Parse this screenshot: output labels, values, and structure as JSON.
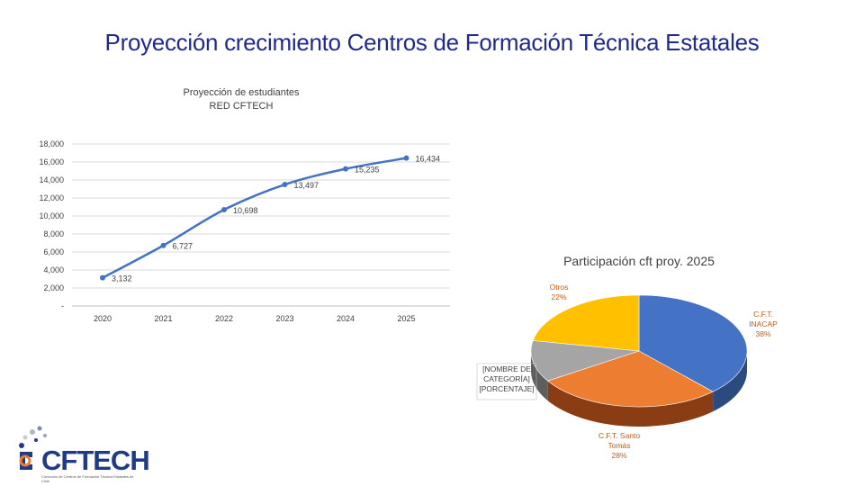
{
  "slide": {
    "title": "Proyección crecimiento Centros de Formación Técnica Estatales"
  },
  "logo": {
    "text": "CFTECH",
    "subtitle": "Consorcio de Centros de Formación Técnica Estatales de Chile"
  },
  "chart_data": [
    {
      "type": "line",
      "title": [
        "Proyección de estudiantes",
        "RED CFTECH"
      ],
      "x": [
        "2020",
        "2021",
        "2022",
        "2023",
        "2024",
        "2025"
      ],
      "values": [
        3132,
        6727,
        10698,
        13497,
        15235,
        16434
      ],
      "value_labels": [
        "3,132",
        "6,727",
        "10,698",
        "13,497",
        "15,235",
        "16,434"
      ],
      "y_ticks": [
        0,
        2000,
        4000,
        6000,
        8000,
        10000,
        12000,
        14000,
        16000,
        18000
      ],
      "y_tick_labels": [
        "-",
        "2,000",
        "4,000",
        "6,000",
        "8,000",
        "10,000",
        "12,000",
        "14,000",
        "16,000",
        "18,000"
      ],
      "ylim": [
        0,
        18000
      ],
      "grid": true,
      "line_color": "#4472c4"
    },
    {
      "type": "pie",
      "style": "3d",
      "title": "Participación cft proy. 2025",
      "slices": [
        {
          "label": "C.F.T. INACAP",
          "percent": 38,
          "label_lines": [
            "C.F.T.",
            "INACAP",
            "38%"
          ],
          "color": "#4472c4",
          "side": "#2b4a80",
          "label_color": "#c55a11"
        },
        {
          "label": "C.F.T. Santo Tomás",
          "percent": 28,
          "label_lines": [
            "C.F.T. Santo",
            "Tomás",
            "28%"
          ],
          "color": "#ed7d31",
          "side": "#8a3c12",
          "label_color": "#c55a11"
        },
        {
          "label": "[NOMBRE DE CATEGORÍA]",
          "percent": 12,
          "label_lines": [
            "[NOMBRE DE",
            "CATEGORÍA]",
            "[PORCENTAJE]"
          ],
          "color": "#a5a5a5",
          "side": "#5e5e5e",
          "label_color": "#404040"
        },
        {
          "label": "Otros",
          "percent": 22,
          "label_lines": [
            "Otros",
            "22%"
          ],
          "color": "#ffc000",
          "side": "#9c7400",
          "label_color": "#c55a11"
        }
      ]
    }
  ]
}
